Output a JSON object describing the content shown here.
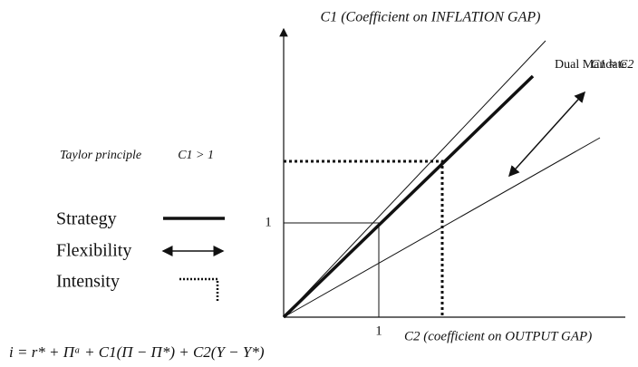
{
  "axes": {
    "y_label": "C1 (Coefficient on INFLATION GAP)",
    "x_label": "C2 (coefficient on OUTPUT GAP)",
    "y_tick": "1",
    "x_tick": "1"
  },
  "annotations": {
    "dual_mandate": "Dual Mandate",
    "dual_mandate_condition": "C1 ≈ C2",
    "taylor_principle": "Taylor principle",
    "taylor_condition": "C1 > 1"
  },
  "legend": [
    {
      "label": "Strategy"
    },
    {
      "label": "Flexibility"
    },
    {
      "label": "Intensity"
    }
  ],
  "formula": "i = r* + Πᵃ + C1(Π − Π*) + C2(Y − Y*)"
}
